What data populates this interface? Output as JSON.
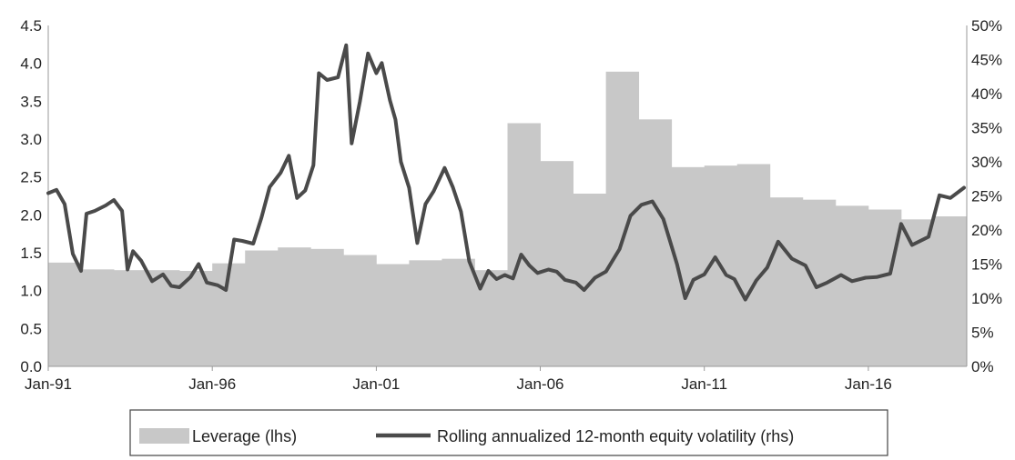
{
  "chart_data": {
    "type": "bar+line",
    "title": "",
    "x_tick_labels": [
      "Jan-91",
      "Jan-96",
      "Jan-01",
      "Jan-06",
      "Jan-11",
      "Jan-16"
    ],
    "y_left": {
      "ylim": [
        0,
        4.5
      ],
      "tick_labels": [
        "0.0",
        "0.5",
        "1.0",
        "1.5",
        "2.0",
        "2.5",
        "3.0",
        "3.5",
        "4.0",
        "4.5"
      ]
    },
    "y_right": {
      "ylim": [
        0,
        50
      ],
      "tick_labels": [
        "0%",
        "5%",
        "10%",
        "15%",
        "20%",
        "25%",
        "30%",
        "35%",
        "40%",
        "45%",
        "50%"
      ]
    },
    "legend": {
      "position": "bottom"
    },
    "colors": {
      "bars": "#c8c8c8",
      "line": "#4a4a4a",
      "axis": "#999999"
    },
    "series": [
      {
        "name": "Leverage (lhs)",
        "kind": "bar",
        "axis": "left",
        "periods": [
          {
            "year": 1991,
            "value": 1.37
          },
          {
            "year": 1992,
            "value": 1.28
          },
          {
            "year": 1993,
            "value": 1.27
          },
          {
            "year": 1994,
            "value": 1.27
          },
          {
            "year": 1995,
            "value": 1.26
          },
          {
            "year": 1996,
            "value": 1.36
          },
          {
            "year": 1997,
            "value": 1.53
          },
          {
            "year": 1998,
            "value": 1.57
          },
          {
            "year": 1999,
            "value": 1.55
          },
          {
            "year": 2000,
            "value": 1.47
          },
          {
            "year": 2001,
            "value": 1.35
          },
          {
            "year": 2002,
            "value": 1.4
          },
          {
            "year": 2003,
            "value": 1.42
          },
          {
            "year": 2004,
            "value": 1.27
          },
          {
            "year": 2005,
            "value": 3.21
          },
          {
            "year": 2006,
            "value": 2.71
          },
          {
            "year": 2007,
            "value": 2.28
          },
          {
            "year": 2008,
            "value": 3.89
          },
          {
            "year": 2009,
            "value": 3.26
          },
          {
            "year": 2010,
            "value": 2.63
          },
          {
            "year": 2011,
            "value": 2.65
          },
          {
            "year": 2012,
            "value": 2.67
          },
          {
            "year": 2013,
            "value": 2.23
          },
          {
            "year": 2014,
            "value": 2.2
          },
          {
            "year": 2015,
            "value": 2.12
          },
          {
            "year": 2016,
            "value": 2.07
          },
          {
            "year": 2017,
            "value": 1.94
          },
          {
            "year": 2018,
            "value": 1.98
          }
        ]
      },
      {
        "name": "Rolling annualized 12-month equity volatility (rhs)",
        "kind": "line",
        "axis": "right",
        "points": [
          [
            "1991-01",
            25.4
          ],
          [
            "1991-04",
            25.9
          ],
          [
            "1991-07",
            23.8
          ],
          [
            "1991-10",
            16.5
          ],
          [
            "1992-01",
            14.0
          ],
          [
            "1992-03",
            22.4
          ],
          [
            "1992-06",
            22.8
          ],
          [
            "1992-10",
            23.6
          ],
          [
            "1993-01",
            24.4
          ],
          [
            "1993-04",
            22.8
          ],
          [
            "1993-06",
            14.2
          ],
          [
            "1993-08",
            16.9
          ],
          [
            "1993-11",
            15.5
          ],
          [
            "1994-03",
            12.5
          ],
          [
            "1994-07",
            13.5
          ],
          [
            "1994-10",
            11.8
          ],
          [
            "1995-01",
            11.6
          ],
          [
            "1995-05",
            13.1
          ],
          [
            "1995-08",
            15.0
          ],
          [
            "1995-11",
            12.3
          ],
          [
            "1996-03",
            11.9
          ],
          [
            "1996-06",
            11.2
          ],
          [
            "1996-09",
            18.6
          ],
          [
            "1996-12",
            18.4
          ],
          [
            "1997-04",
            18.0
          ],
          [
            "1997-07",
            21.8
          ],
          [
            "1997-10",
            26.3
          ],
          [
            "1998-02",
            28.4
          ],
          [
            "1998-05",
            30.9
          ],
          [
            "1998-08",
            24.7
          ],
          [
            "1998-11",
            25.8
          ],
          [
            "1999-02",
            29.5
          ],
          [
            "1999-04",
            43.0
          ],
          [
            "1999-07",
            42.0
          ],
          [
            "1999-11",
            42.4
          ],
          [
            "2000-02",
            47.1
          ],
          [
            "2000-04",
            32.7
          ],
          [
            "2000-07",
            38.8
          ],
          [
            "2000-10",
            45.9
          ],
          [
            "2001-01",
            43.0
          ],
          [
            "2001-03",
            44.5
          ],
          [
            "2001-06",
            39.0
          ],
          [
            "2001-08",
            36.2
          ],
          [
            "2001-10",
            30.0
          ],
          [
            "2002-01",
            26.2
          ],
          [
            "2002-04",
            18.1
          ],
          [
            "2002-07",
            23.8
          ],
          [
            "2002-10",
            25.7
          ],
          [
            "2003-02",
            29.1
          ],
          [
            "2003-05",
            26.3
          ],
          [
            "2003-08",
            22.7
          ],
          [
            "2003-11",
            15.4
          ],
          [
            "2004-03",
            11.4
          ],
          [
            "2004-06",
            14.0
          ],
          [
            "2004-09",
            12.8
          ],
          [
            "2004-12",
            13.4
          ],
          [
            "2005-03",
            12.9
          ],
          [
            "2005-06",
            16.4
          ],
          [
            "2005-09",
            14.8
          ],
          [
            "2005-12",
            13.7
          ],
          [
            "2006-04",
            14.2
          ],
          [
            "2006-07",
            13.9
          ],
          [
            "2006-10",
            12.7
          ],
          [
            "2007-02",
            12.3
          ],
          [
            "2007-05",
            11.2
          ],
          [
            "2007-09",
            13.0
          ],
          [
            "2008-01",
            13.9
          ],
          [
            "2008-06",
            17.2
          ],
          [
            "2008-10",
            22.1
          ],
          [
            "2009-02",
            23.7
          ],
          [
            "2009-06",
            24.2
          ],
          [
            "2009-10",
            21.6
          ],
          [
            "2010-03",
            15.0
          ],
          [
            "2010-06",
            10.0
          ],
          [
            "2010-09",
            12.7
          ],
          [
            "2011-01",
            13.5
          ],
          [
            "2011-05",
            16.0
          ],
          [
            "2011-09",
            13.4
          ],
          [
            "2011-12",
            12.8
          ],
          [
            "2012-04",
            9.8
          ],
          [
            "2012-08",
            12.6
          ],
          [
            "2012-12",
            14.5
          ],
          [
            "2013-04",
            18.3
          ],
          [
            "2013-09",
            15.8
          ],
          [
            "2014-02",
            14.8
          ],
          [
            "2014-06",
            11.6
          ],
          [
            "2014-10",
            12.3
          ],
          [
            "2015-03",
            13.4
          ],
          [
            "2015-07",
            12.5
          ],
          [
            "2015-12",
            13.0
          ],
          [
            "2016-04",
            13.1
          ],
          [
            "2016-09",
            13.6
          ],
          [
            "2017-01",
            20.9
          ],
          [
            "2017-05",
            17.8
          ],
          [
            "2017-11",
            19.0
          ],
          [
            "2018-03",
            25.1
          ],
          [
            "2018-07",
            24.7
          ],
          [
            "2018-12",
            26.2
          ]
        ]
      }
    ]
  }
}
